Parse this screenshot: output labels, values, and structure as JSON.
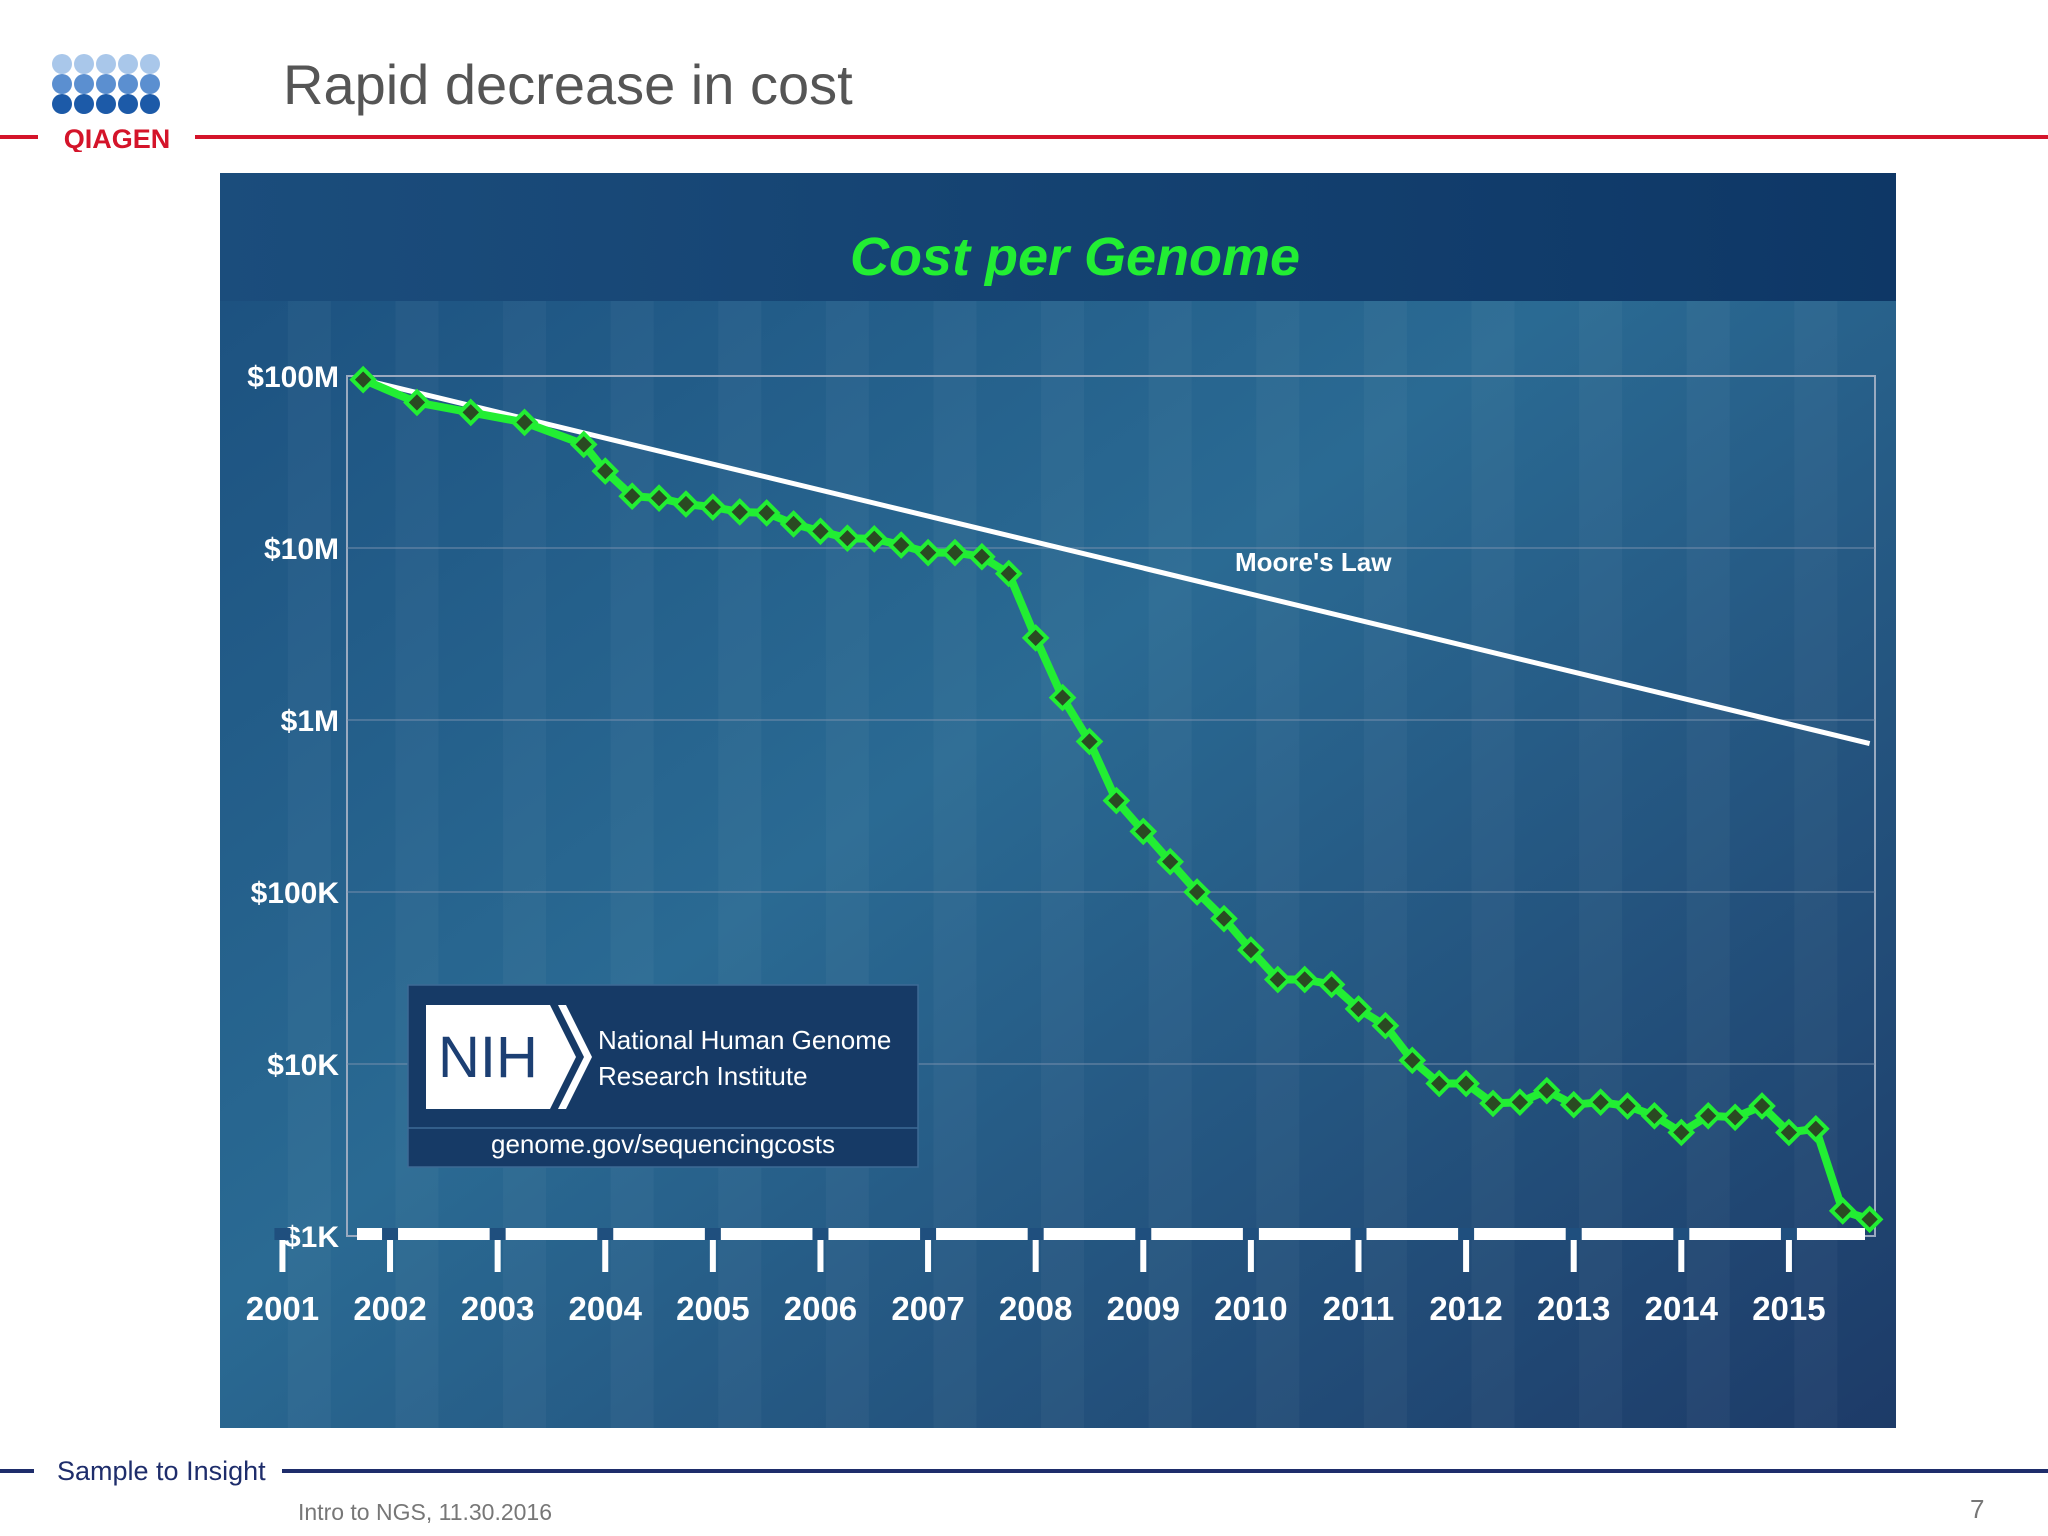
{
  "slide": {
    "title": "Rapid decrease in cost",
    "footer_tagline": "Sample to Insight",
    "footer_note": "Intro to NGS, 11.30.2016",
    "page_number": "7",
    "logo_text": "QIAGEN"
  },
  "colors": {
    "brand_red": "#d4142a",
    "brand_navy": "#1e2d6b",
    "logo_light_blue": "#a9c7ea",
    "logo_mid_blue": "#5b8fd0",
    "logo_dark_blue": "#1c5aa8",
    "chart_bg_dark": "#163a66",
    "series_green": "#22ee33",
    "marker_fill": "#2a4a22",
    "moores_line": "#ffffff"
  },
  "chart_data": {
    "type": "line",
    "title": "Cost per Genome",
    "y_scale": "log",
    "ylim": [
      1000,
      100000000
    ],
    "y_tick_labels": [
      "$100M",
      "$10M",
      "$1M",
      "$100K",
      "$10K",
      "$1K"
    ],
    "y_tick_values": [
      100000000,
      10000000,
      1000000,
      100000,
      10000,
      1000
    ],
    "x_tick_labels": [
      "2001",
      "2002",
      "2003",
      "2004",
      "2005",
      "2006",
      "2007",
      "2008",
      "2009",
      "2010",
      "2011",
      "2012",
      "2013",
      "2014",
      "2015"
    ],
    "xlim": [
      2001.6,
      2015.8
    ],
    "series": [
      {
        "name": "",
        "x": [
          2001.75,
          2002.25,
          2002.75,
          2003.25,
          2003.8,
          2004.0,
          2004.25,
          2004.5,
          2004.75,
          2005.0,
          2005.25,
          2005.5,
          2005.75,
          2006.0,
          2006.25,
          2006.5,
          2006.75,
          2007.0,
          2007.25,
          2007.5,
          2007.75,
          2008.0,
          2008.25,
          2008.5,
          2008.75,
          2009.0,
          2009.25,
          2009.5,
          2009.75,
          2010.0,
          2010.25,
          2010.5,
          2010.75,
          2011.0,
          2011.25,
          2011.5,
          2011.75,
          2012.0,
          2012.25,
          2012.5,
          2012.75,
          2013.0,
          2013.25,
          2013.5,
          2013.75,
          2014.0,
          2014.25,
          2014.5,
          2014.75,
          2015.0,
          2015.25,
          2015.5,
          2015.75
        ],
        "y": [
          95263000,
          70175000,
          61448000,
          53751000,
          40000000,
          28000000,
          20000000,
          19500000,
          18000000,
          17300000,
          16200000,
          16000000,
          13800000,
          12500000,
          11400000,
          11300000,
          10400000,
          9400000,
          9400000,
          8900000,
          7100000,
          3000000,
          1350000,
          750000,
          340000,
          225000,
          150000,
          100000,
          70000,
          46000,
          31000,
          31000,
          29000,
          20900,
          16700,
          10500,
          7700,
          7700,
          5900,
          6000,
          7000,
          5800,
          6000,
          5700,
          5000,
          4000,
          5000,
          4900,
          5700,
          4000,
          4200,
          1400,
          1250
        ]
      },
      {
        "name": "Moore's Law",
        "x": [
          2001.75,
          2015.75
        ],
        "y": [
          95263000,
          730000
        ]
      }
    ],
    "source_box": {
      "logo": "NIH",
      "institute_line1": "National Human Genome",
      "institute_line2": "Research Institute",
      "url": "genome.gov/sequencingcosts"
    }
  }
}
